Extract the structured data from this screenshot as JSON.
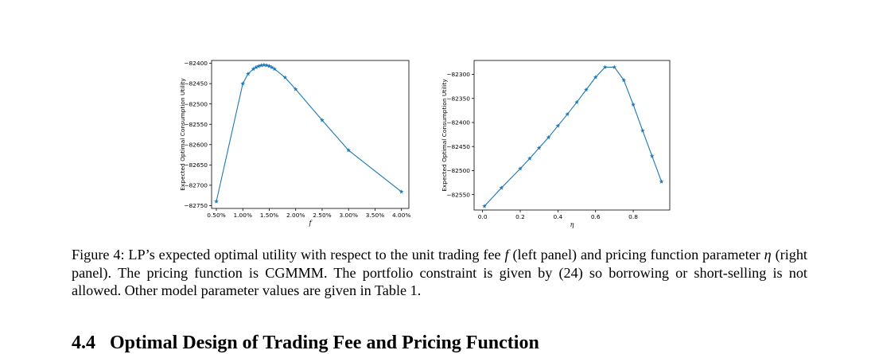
{
  "figure": {
    "caption": {
      "part1": "Figure 4: LP’s expected optimal utility with respect to the unit trading fee ",
      "var_f": "f",
      "part2": " (left panel) and pricing function parameter ",
      "var_eta": "η",
      "part3": " (right panel). The pricing function is CGMMM. The portfolio constraint is given by (24) so borrowing or short-selling is not allowed. Other model parameter values are given in Table 1."
    }
  },
  "section": {
    "number": "4.4",
    "title": "Optimal Design of Trading Fee and Pricing Function"
  },
  "colors": {
    "line": "#1f77b4",
    "axes": "#000000"
  },
  "chart_data": [
    {
      "type": "line",
      "title": "",
      "xlabel": "f",
      "ylabel": "Expected Optimal Consumption Utility",
      "marker": "star",
      "xlim": [
        0.0041,
        0.0414
      ],
      "ylim": [
        -82757,
        -82393
      ],
      "xticks": [
        0.005,
        0.01,
        0.015,
        0.02,
        0.025,
        0.03,
        0.035,
        0.04
      ],
      "xtick_labels": [
        "0.50%",
        "1.00%",
        "1.50%",
        "2.00%",
        "2.50%",
        "3.00%",
        "3.50%",
        "4.00%"
      ],
      "yticks": [
        -82750,
        -82700,
        -82650,
        -82600,
        -82550,
        -82500,
        -82450,
        -82400
      ],
      "ytick_labels": [
        "−82750",
        "−82700",
        "−82650",
        "−82600",
        "−82550",
        "−82500",
        "−82450",
        "−82400"
      ],
      "grid": false,
      "x": [
        0.005,
        0.01,
        0.011,
        0.012,
        0.0125,
        0.013,
        0.0135,
        0.014,
        0.0145,
        0.015,
        0.0155,
        0.016,
        0.018,
        0.02,
        0.025,
        0.03,
        0.04
      ],
      "y": [
        -82740,
        -82450,
        -82426,
        -82414,
        -82410,
        -82407,
        -82405,
        -82404,
        -82405,
        -82407,
        -82410,
        -82414,
        -82435,
        -82464,
        -82540,
        -82614,
        -82716
      ]
    },
    {
      "type": "line",
      "title": "",
      "xlabel": "η",
      "ylabel": "Expected Optimal Consumption Utility",
      "marker": "star",
      "xlim": [
        -0.045,
        0.994
      ],
      "ylim": [
        -82582,
        -82271
      ],
      "xticks": [
        0.0,
        0.2,
        0.4,
        0.6,
        0.8
      ],
      "xtick_labels": [
        "0.0",
        "0.2",
        "0.4",
        "0.6",
        "0.8"
      ],
      "yticks": [
        -82550,
        -82500,
        -82450,
        -82400,
        -82350,
        -82300
      ],
      "ytick_labels": [
        "−82550",
        "−82500",
        "−82450",
        "−82400",
        "−82350",
        "−82300"
      ],
      "grid": false,
      "x": [
        0.01,
        0.1,
        0.2,
        0.25,
        0.3,
        0.35,
        0.4,
        0.45,
        0.5,
        0.55,
        0.6,
        0.65,
        0.7,
        0.75,
        0.8,
        0.85,
        0.9,
        0.95
      ],
      "y": [
        -82574,
        -82536,
        -82496,
        -82475,
        -82453,
        -82431,
        -82407,
        -82383,
        -82358,
        -82332,
        -82306,
        -82285,
        -82285,
        -82312,
        -82363,
        -82417,
        -82470,
        -82523
      ]
    }
  ]
}
